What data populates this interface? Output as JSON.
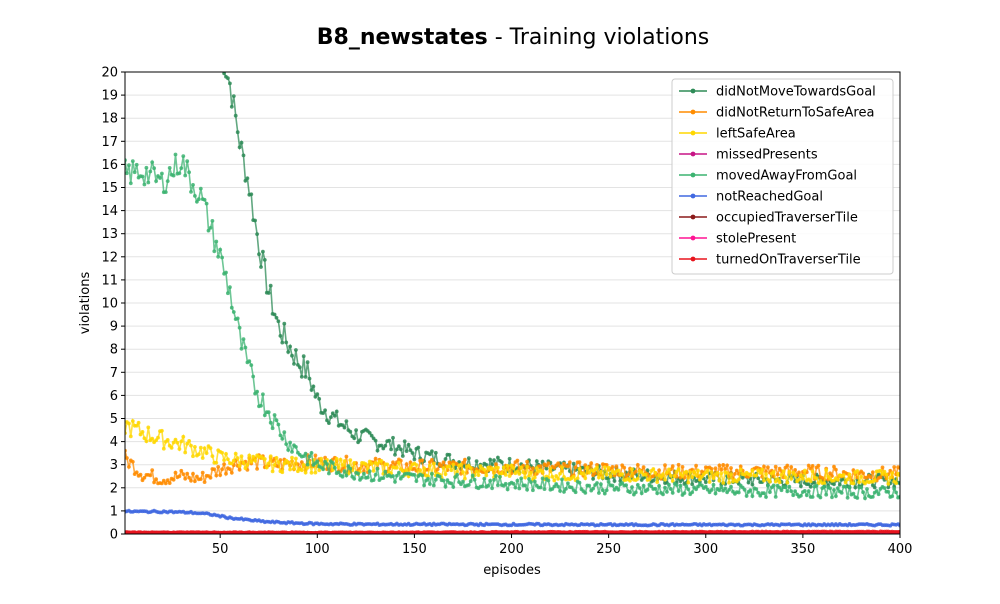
{
  "chart_data": {
    "type": "line",
    "title_bold": "B8_newstates",
    "title_rest": " - Training violations",
    "xlabel": "episodes",
    "ylabel": "violations",
    "xlim": [
      1,
      400
    ],
    "ylim": [
      0,
      20
    ],
    "xticks": [
      50,
      100,
      150,
      200,
      250,
      300,
      350,
      400
    ],
    "yticks": [
      0,
      1,
      2,
      3,
      4,
      5,
      6,
      7,
      8,
      9,
      10,
      11,
      12,
      13,
      14,
      15,
      16,
      17,
      18,
      19,
      20
    ],
    "grid": "horizontal",
    "legend_position": "top-right",
    "series": [
      {
        "name": "didNotMoveTowardsGoal",
        "color": "#2e8b57",
        "points": [
          [
            50,
            21
          ],
          [
            55,
            19.5
          ],
          [
            60,
            17
          ],
          [
            65,
            15
          ],
          [
            70,
            12.5
          ],
          [
            75,
            10.5
          ],
          [
            80,
            9
          ],
          [
            85,
            8.2
          ],
          [
            90,
            7.5
          ],
          [
            95,
            7
          ],
          [
            100,
            5.8
          ],
          [
            105,
            5.3
          ],
          [
            110,
            4.9
          ],
          [
            115,
            4.6
          ],
          [
            120,
            4.3
          ],
          [
            130,
            4
          ],
          [
            140,
            3.8
          ],
          [
            150,
            3.5
          ],
          [
            160,
            3.3
          ],
          [
            175,
            3.1
          ],
          [
            200,
            3
          ],
          [
            225,
            2.8
          ],
          [
            250,
            2.6
          ],
          [
            275,
            2.5
          ],
          [
            300,
            2.4
          ],
          [
            325,
            2.35
          ],
          [
            350,
            2.3
          ],
          [
            375,
            2.3
          ],
          [
            400,
            2.3
          ]
        ]
      },
      {
        "name": "didNotReturnToSafeArea",
        "color": "#ff8c00",
        "points": [
          [
            1,
            3.3
          ],
          [
            10,
            2.6
          ],
          [
            20,
            2.4
          ],
          [
            30,
            2.5
          ],
          [
            40,
            2.4
          ],
          [
            50,
            2.8
          ],
          [
            60,
            3.1
          ],
          [
            70,
            3.1
          ],
          [
            80,
            3.0
          ],
          [
            90,
            3.1
          ],
          [
            100,
            3.1
          ],
          [
            120,
            3.0
          ],
          [
            150,
            2.9
          ],
          [
            175,
            2.9
          ],
          [
            200,
            2.9
          ],
          [
            225,
            2.8
          ],
          [
            250,
            2.8
          ],
          [
            275,
            2.7
          ],
          [
            300,
            2.7
          ],
          [
            325,
            2.7
          ],
          [
            350,
            2.7
          ],
          [
            375,
            2.6
          ],
          [
            400,
            2.6
          ]
        ]
      },
      {
        "name": "leftSafeArea",
        "color": "#ffd700",
        "points": [
          [
            1,
            4.7
          ],
          [
            10,
            4.4
          ],
          [
            20,
            4.1
          ],
          [
            30,
            3.9
          ],
          [
            40,
            3.6
          ],
          [
            50,
            3.3
          ],
          [
            60,
            3.2
          ],
          [
            70,
            3.1
          ],
          [
            80,
            3.0
          ],
          [
            90,
            3.0
          ],
          [
            100,
            2.95
          ],
          [
            125,
            2.9
          ],
          [
            150,
            2.8
          ],
          [
            175,
            2.7
          ],
          [
            200,
            2.7
          ],
          [
            225,
            2.6
          ],
          [
            250,
            2.6
          ],
          [
            275,
            2.55
          ],
          [
            300,
            2.5
          ],
          [
            325,
            2.5
          ],
          [
            350,
            2.5
          ],
          [
            375,
            2.45
          ],
          [
            400,
            2.45
          ]
        ]
      },
      {
        "name": "missedPresents",
        "color": "#c71585",
        "points": [
          [
            1,
            0.03
          ],
          [
            100,
            0.03
          ],
          [
            200,
            0.02
          ],
          [
            300,
            0.02
          ],
          [
            400,
            0.02
          ]
        ]
      },
      {
        "name": "movedAwayFromGoal",
        "color": "#3cb371",
        "points": [
          [
            1,
            15.6
          ],
          [
            10,
            15.7
          ],
          [
            15,
            15.5
          ],
          [
            20,
            15.2
          ],
          [
            25,
            15.7
          ],
          [
            30,
            16.2
          ],
          [
            35,
            15.3
          ],
          [
            40,
            14.6
          ],
          [
            45,
            13.3
          ],
          [
            50,
            12
          ],
          [
            55,
            10.5
          ],
          [
            60,
            8.5
          ],
          [
            65,
            7
          ],
          [
            70,
            6
          ],
          [
            75,
            5.3
          ],
          [
            80,
            4.6
          ],
          [
            85,
            4
          ],
          [
            90,
            3.6
          ],
          [
            95,
            3.3
          ],
          [
            100,
            3.0
          ],
          [
            110,
            2.8
          ],
          [
            125,
            2.6
          ],
          [
            150,
            2.4
          ],
          [
            175,
            2.3
          ],
          [
            200,
            2.2
          ],
          [
            225,
            2.1
          ],
          [
            250,
            2.0
          ],
          [
            275,
            1.95
          ],
          [
            300,
            1.9
          ],
          [
            325,
            1.85
          ],
          [
            350,
            1.85
          ],
          [
            375,
            1.8
          ],
          [
            400,
            1.8
          ]
        ]
      },
      {
        "name": "notReachedGoal",
        "color": "#4169e1",
        "points": [
          [
            1,
            0.97
          ],
          [
            20,
            0.97
          ],
          [
            35,
            0.93
          ],
          [
            45,
            0.85
          ],
          [
            55,
            0.7
          ],
          [
            65,
            0.6
          ],
          [
            75,
            0.52
          ],
          [
            90,
            0.47
          ],
          [
            100,
            0.44
          ],
          [
            125,
            0.42
          ],
          [
            150,
            0.42
          ],
          [
            200,
            0.41
          ],
          [
            250,
            0.4
          ],
          [
            300,
            0.4
          ],
          [
            350,
            0.4
          ],
          [
            400,
            0.4
          ]
        ]
      },
      {
        "name": "occupiedTraverserTile",
        "color": "#8b1a1a",
        "points": [
          [
            1,
            0.05
          ],
          [
            100,
            0.05
          ],
          [
            200,
            0.04
          ],
          [
            300,
            0.04
          ],
          [
            400,
            0.04
          ]
        ]
      },
      {
        "name": "stolePresent",
        "color": "#ff1493",
        "points": [
          [
            1,
            0.01
          ],
          [
            100,
            0.01
          ],
          [
            200,
            0.01
          ],
          [
            300,
            0.01
          ],
          [
            400,
            0.01
          ]
        ]
      },
      {
        "name": "turnedOnTraverserTile",
        "color": "#e8141d",
        "points": [
          [
            1,
            0.07
          ],
          [
            100,
            0.06
          ],
          [
            200,
            0.08
          ],
          [
            300,
            0.09
          ],
          [
            400,
            0.1
          ]
        ]
      }
    ]
  }
}
